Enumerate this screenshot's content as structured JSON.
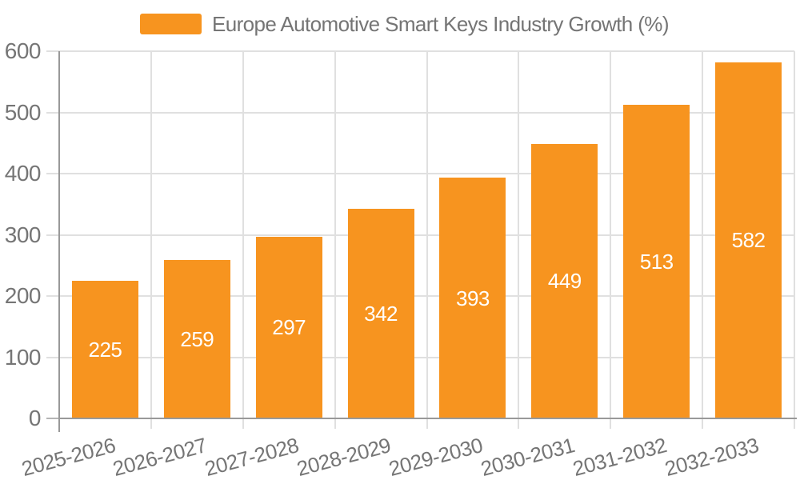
{
  "legend": {
    "label": "Europe Automotive Smart Keys Industry Growth (%)"
  },
  "chart_data": {
    "type": "bar",
    "title": "Europe Automotive Smart Keys Industry Growth (%)",
    "categories": [
      "2025-2026",
      "2026-2027",
      "2027-2028",
      "2028-2029",
      "2029-2030",
      "2030-2031",
      "2031-2032",
      "2032-2033"
    ],
    "values": [
      225,
      259,
      297,
      342,
      393,
      449,
      513,
      582
    ],
    "xlabel": "",
    "ylabel": "",
    "ylim": [
      0,
      600
    ],
    "y_ticks": [
      0,
      100,
      200,
      300,
      400,
      500,
      600
    ],
    "grid": true,
    "legend_position": "top",
    "data_labels": "inside-center",
    "colors": {
      "bar": "#F7941F",
      "bar_label": "#FFFFFF",
      "axis_text": "#757575",
      "axis_line": "#999999",
      "tick_line": "#B5B5B5",
      "grid_line": "#E0E0E0",
      "background": "#FFFFFF"
    }
  }
}
